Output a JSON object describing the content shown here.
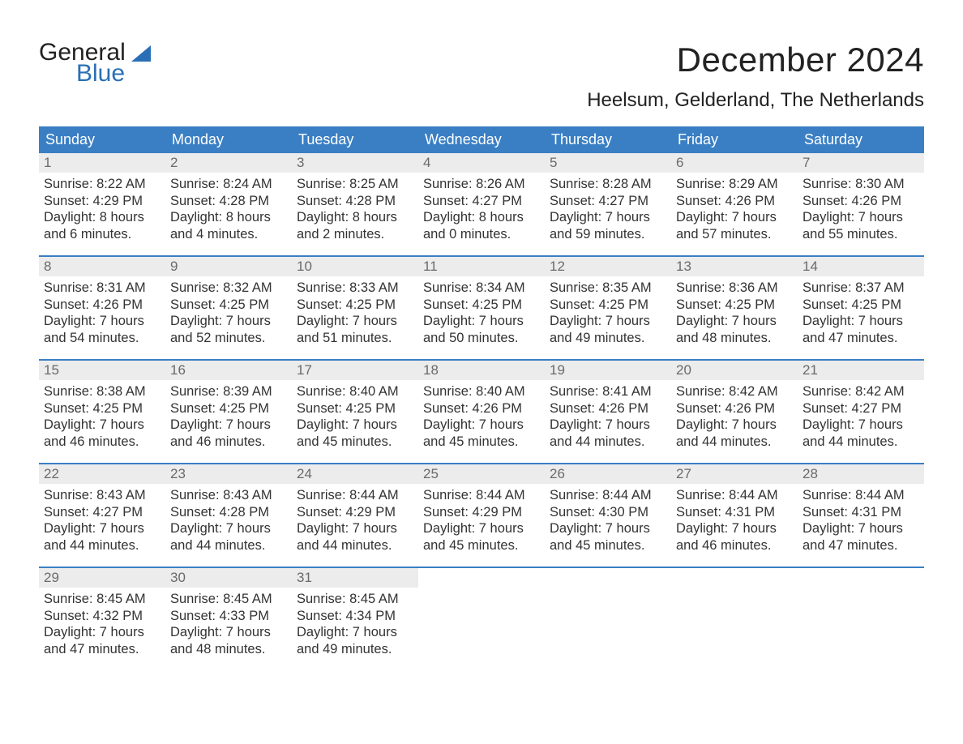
{
  "colors": {
    "header_bg": "#3a7fc4",
    "header_fg": "#ffffff",
    "daynum_bg": "#ececec",
    "daynum_fg": "#6a6a6a",
    "week_border": "#3a7fc4",
    "body_fg": "#333333",
    "logo_dark": "#222222",
    "logo_blue": "#2a6fb5"
  },
  "logo": {
    "line1": "General",
    "line2": "Blue"
  },
  "title": "December 2024",
  "location": "Heelsum, Gelderland, The Netherlands",
  "days_of_week": [
    "Sunday",
    "Monday",
    "Tuesday",
    "Wednesday",
    "Thursday",
    "Friday",
    "Saturday"
  ],
  "weeks": [
    [
      {
        "n": "1",
        "sunrise": "Sunrise: 8:22 AM",
        "sunset": "Sunset: 4:29 PM",
        "day1": "Daylight: 8 hours",
        "day2": "and 6 minutes."
      },
      {
        "n": "2",
        "sunrise": "Sunrise: 8:24 AM",
        "sunset": "Sunset: 4:28 PM",
        "day1": "Daylight: 8 hours",
        "day2": "and 4 minutes."
      },
      {
        "n": "3",
        "sunrise": "Sunrise: 8:25 AM",
        "sunset": "Sunset: 4:28 PM",
        "day1": "Daylight: 8 hours",
        "day2": "and 2 minutes."
      },
      {
        "n": "4",
        "sunrise": "Sunrise: 8:26 AM",
        "sunset": "Sunset: 4:27 PM",
        "day1": "Daylight: 8 hours",
        "day2": "and 0 minutes."
      },
      {
        "n": "5",
        "sunrise": "Sunrise: 8:28 AM",
        "sunset": "Sunset: 4:27 PM",
        "day1": "Daylight: 7 hours",
        "day2": "and 59 minutes."
      },
      {
        "n": "6",
        "sunrise": "Sunrise: 8:29 AM",
        "sunset": "Sunset: 4:26 PM",
        "day1": "Daylight: 7 hours",
        "day2": "and 57 minutes."
      },
      {
        "n": "7",
        "sunrise": "Sunrise: 8:30 AM",
        "sunset": "Sunset: 4:26 PM",
        "day1": "Daylight: 7 hours",
        "day2": "and 55 minutes."
      }
    ],
    [
      {
        "n": "8",
        "sunrise": "Sunrise: 8:31 AM",
        "sunset": "Sunset: 4:26 PM",
        "day1": "Daylight: 7 hours",
        "day2": "and 54 minutes."
      },
      {
        "n": "9",
        "sunrise": "Sunrise: 8:32 AM",
        "sunset": "Sunset: 4:25 PM",
        "day1": "Daylight: 7 hours",
        "day2": "and 52 minutes."
      },
      {
        "n": "10",
        "sunrise": "Sunrise: 8:33 AM",
        "sunset": "Sunset: 4:25 PM",
        "day1": "Daylight: 7 hours",
        "day2": "and 51 minutes."
      },
      {
        "n": "11",
        "sunrise": "Sunrise: 8:34 AM",
        "sunset": "Sunset: 4:25 PM",
        "day1": "Daylight: 7 hours",
        "day2": "and 50 minutes."
      },
      {
        "n": "12",
        "sunrise": "Sunrise: 8:35 AM",
        "sunset": "Sunset: 4:25 PM",
        "day1": "Daylight: 7 hours",
        "day2": "and 49 minutes."
      },
      {
        "n": "13",
        "sunrise": "Sunrise: 8:36 AM",
        "sunset": "Sunset: 4:25 PM",
        "day1": "Daylight: 7 hours",
        "day2": "and 48 minutes."
      },
      {
        "n": "14",
        "sunrise": "Sunrise: 8:37 AM",
        "sunset": "Sunset: 4:25 PM",
        "day1": "Daylight: 7 hours",
        "day2": "and 47 minutes."
      }
    ],
    [
      {
        "n": "15",
        "sunrise": "Sunrise: 8:38 AM",
        "sunset": "Sunset: 4:25 PM",
        "day1": "Daylight: 7 hours",
        "day2": "and 46 minutes."
      },
      {
        "n": "16",
        "sunrise": "Sunrise: 8:39 AM",
        "sunset": "Sunset: 4:25 PM",
        "day1": "Daylight: 7 hours",
        "day2": "and 46 minutes."
      },
      {
        "n": "17",
        "sunrise": "Sunrise: 8:40 AM",
        "sunset": "Sunset: 4:25 PM",
        "day1": "Daylight: 7 hours",
        "day2": "and 45 minutes."
      },
      {
        "n": "18",
        "sunrise": "Sunrise: 8:40 AM",
        "sunset": "Sunset: 4:26 PM",
        "day1": "Daylight: 7 hours",
        "day2": "and 45 minutes."
      },
      {
        "n": "19",
        "sunrise": "Sunrise: 8:41 AM",
        "sunset": "Sunset: 4:26 PM",
        "day1": "Daylight: 7 hours",
        "day2": "and 44 minutes."
      },
      {
        "n": "20",
        "sunrise": "Sunrise: 8:42 AM",
        "sunset": "Sunset: 4:26 PM",
        "day1": "Daylight: 7 hours",
        "day2": "and 44 minutes."
      },
      {
        "n": "21",
        "sunrise": "Sunrise: 8:42 AM",
        "sunset": "Sunset: 4:27 PM",
        "day1": "Daylight: 7 hours",
        "day2": "and 44 minutes."
      }
    ],
    [
      {
        "n": "22",
        "sunrise": "Sunrise: 8:43 AM",
        "sunset": "Sunset: 4:27 PM",
        "day1": "Daylight: 7 hours",
        "day2": "and 44 minutes."
      },
      {
        "n": "23",
        "sunrise": "Sunrise: 8:43 AM",
        "sunset": "Sunset: 4:28 PM",
        "day1": "Daylight: 7 hours",
        "day2": "and 44 minutes."
      },
      {
        "n": "24",
        "sunrise": "Sunrise: 8:44 AM",
        "sunset": "Sunset: 4:29 PM",
        "day1": "Daylight: 7 hours",
        "day2": "and 44 minutes."
      },
      {
        "n": "25",
        "sunrise": "Sunrise: 8:44 AM",
        "sunset": "Sunset: 4:29 PM",
        "day1": "Daylight: 7 hours",
        "day2": "and 45 minutes."
      },
      {
        "n": "26",
        "sunrise": "Sunrise: 8:44 AM",
        "sunset": "Sunset: 4:30 PM",
        "day1": "Daylight: 7 hours",
        "day2": "and 45 minutes."
      },
      {
        "n": "27",
        "sunrise": "Sunrise: 8:44 AM",
        "sunset": "Sunset: 4:31 PM",
        "day1": "Daylight: 7 hours",
        "day2": "and 46 minutes."
      },
      {
        "n": "28",
        "sunrise": "Sunrise: 8:44 AM",
        "sunset": "Sunset: 4:31 PM",
        "day1": "Daylight: 7 hours",
        "day2": "and 47 minutes."
      }
    ],
    [
      {
        "n": "29",
        "sunrise": "Sunrise: 8:45 AM",
        "sunset": "Sunset: 4:32 PM",
        "day1": "Daylight: 7 hours",
        "day2": "and 47 minutes."
      },
      {
        "n": "30",
        "sunrise": "Sunrise: 8:45 AM",
        "sunset": "Sunset: 4:33 PM",
        "day1": "Daylight: 7 hours",
        "day2": "and 48 minutes."
      },
      {
        "n": "31",
        "sunrise": "Sunrise: 8:45 AM",
        "sunset": "Sunset: 4:34 PM",
        "day1": "Daylight: 7 hours",
        "day2": "and 49 minutes."
      },
      {
        "empty": true
      },
      {
        "empty": true
      },
      {
        "empty": true
      },
      {
        "empty": true
      }
    ]
  ]
}
